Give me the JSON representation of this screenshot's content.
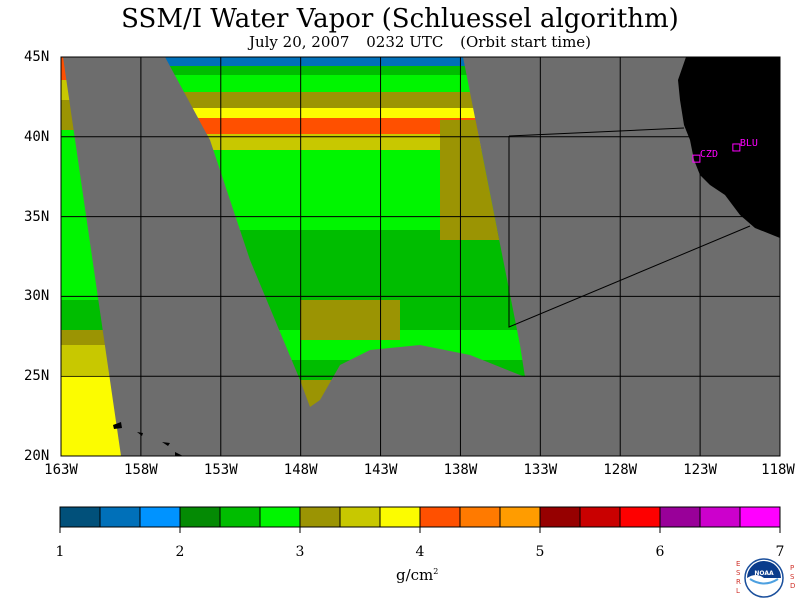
{
  "title": "SSM/I Water Vapor (Schluessel algorithm)",
  "subtitle": {
    "date": "July 20, 2007",
    "time": "0232 UTC",
    "note": "(Orbit start time)"
  },
  "map": {
    "lat_labels": [
      "45N",
      "40N",
      "35N",
      "30N",
      "25N",
      "20N"
    ],
    "lon_labels": [
      "163W",
      "158W",
      "153W",
      "148W",
      "143W",
      "138W",
      "133W",
      "128W",
      "123W",
      "118W"
    ],
    "lat_range": [
      20,
      45
    ],
    "lon_range": [
      -163,
      -118
    ],
    "stations": [
      {
        "id": "CZD",
        "lat": 38.6,
        "lon": -123.2
      },
      {
        "id": "BLU",
        "lat": 39.3,
        "lon": -120.7
      }
    ],
    "colors": {
      "ocean_no_data": "#6d6d6d",
      "land": "#000000",
      "grid": "#000000",
      "station": "#ff00ff"
    }
  },
  "colorbar": {
    "ticks": [
      "1",
      "2",
      "3",
      "4",
      "5",
      "6",
      "7"
    ],
    "colors": [
      "#01507a",
      "#0070b9",
      "#0093ff",
      "#048a04",
      "#00bd00",
      "#00f500",
      "#9b9403",
      "#c8c800",
      "#fcfc00",
      "#ff5000",
      "#ff7a00",
      "#ff9c00",
      "#960000",
      "#c90000",
      "#fe0000",
      "#990099",
      "#cc00cc",
      "#ff00ff"
    ],
    "units": "g/cm",
    "units_exp": "2"
  },
  "logo": {
    "left_letters": [
      "E",
      "S",
      "R",
      "L"
    ],
    "right_letters": [
      "P",
      "S",
      "D"
    ],
    "badge": "NOAA"
  }
}
